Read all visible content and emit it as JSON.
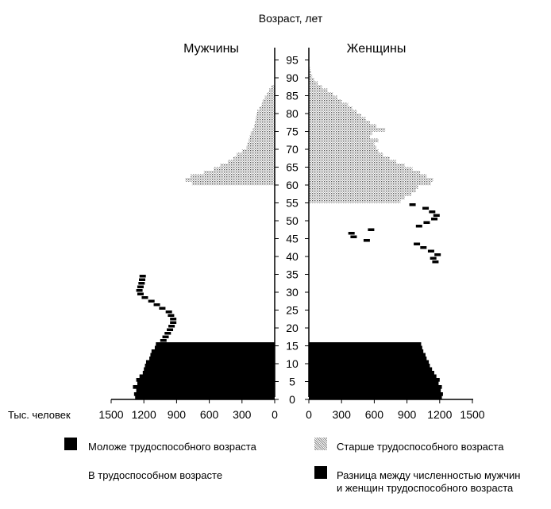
{
  "chart_data": {
    "type": "bar",
    "orientation": "horizontal-population-pyramid",
    "title": "",
    "age_axis_label": "Возраст, лет",
    "value_axis_label": "Тыс. человек",
    "left_panel_label": "Мужчины",
    "right_panel_label": "Женщины",
    "age_ticks": [
      0,
      5,
      10,
      15,
      20,
      25,
      30,
      35,
      40,
      45,
      50,
      55,
      60,
      65,
      70,
      75,
      80,
      85,
      90,
      95
    ],
    "value_ticks_left": [
      1500,
      1200,
      900,
      600,
      300,
      0
    ],
    "value_ticks_right": [
      0,
      300,
      600,
      900,
      1200,
      1500
    ],
    "xlim": [
      0,
      1500
    ],
    "ylim": [
      0,
      100
    ],
    "legend": {
      "young": "Моложе трудоспособного возраста",
      "working": "В трудоспособном возрасте",
      "old": "Старше трудоспособного возраста",
      "diff_line1": "Разница между численностью мужчин",
      "diff_line2": "и женщин трудоспособного возраста"
    },
    "colors": {
      "young": "#000000",
      "old": "#aaaaaa",
      "diff": "#000000",
      "axis": "#000000"
    },
    "men": {
      "young": [
        {
          "age": 0,
          "v": 1280
        },
        {
          "age": 1,
          "v": 1290
        },
        {
          "age": 2,
          "v": 1270
        },
        {
          "age": 3,
          "v": 1300
        },
        {
          "age": 4,
          "v": 1260
        },
        {
          "age": 5,
          "v": 1270
        },
        {
          "age": 6,
          "v": 1240
        },
        {
          "age": 7,
          "v": 1210
        },
        {
          "age": 8,
          "v": 1200
        },
        {
          "age": 9,
          "v": 1190
        },
        {
          "age": 10,
          "v": 1180
        },
        {
          "age": 11,
          "v": 1150
        },
        {
          "age": 12,
          "v": 1140
        },
        {
          "age": 13,
          "v": 1130
        },
        {
          "age": 14,
          "v": 1100
        },
        {
          "age": 15,
          "v": 1090
        }
      ],
      "old": [
        {
          "age": 60,
          "v": 760
        },
        {
          "age": 61,
          "v": 820
        },
        {
          "age": 62,
          "v": 770
        },
        {
          "age": 63,
          "v": 650
        },
        {
          "age": 64,
          "v": 560
        },
        {
          "age": 65,
          "v": 500
        },
        {
          "age": 66,
          "v": 430
        },
        {
          "age": 67,
          "v": 380
        },
        {
          "age": 68,
          "v": 350
        },
        {
          "age": 69,
          "v": 300
        },
        {
          "age": 70,
          "v": 260
        },
        {
          "age": 71,
          "v": 250
        },
        {
          "age": 72,
          "v": 240
        },
        {
          "age": 73,
          "v": 230
        },
        {
          "age": 74,
          "v": 220
        },
        {
          "age": 75,
          "v": 200
        },
        {
          "age": 76,
          "v": 190
        },
        {
          "age": 77,
          "v": 180
        },
        {
          "age": 78,
          "v": 175
        },
        {
          "age": 79,
          "v": 170
        },
        {
          "age": 80,
          "v": 160
        },
        {
          "age": 81,
          "v": 140
        },
        {
          "age": 82,
          "v": 120
        },
        {
          "age": 83,
          "v": 110
        },
        {
          "age": 84,
          "v": 90
        },
        {
          "age": 85,
          "v": 70
        },
        {
          "age": 86,
          "v": 50
        },
        {
          "age": 87,
          "v": 30
        }
      ],
      "diff": [
        {
          "age": 16,
          "v": 1050
        },
        {
          "age": 17,
          "v": 1030
        },
        {
          "age": 18,
          "v": 1010
        },
        {
          "age": 19,
          "v": 990
        },
        {
          "age": 20,
          "v": 975
        },
        {
          "age": 21,
          "v": 960
        },
        {
          "age": 22,
          "v": 960
        },
        {
          "age": 23,
          "v": 980
        },
        {
          "age": 24,
          "v": 1000
        },
        {
          "age": 25,
          "v": 1060
        },
        {
          "age": 26,
          "v": 1110
        },
        {
          "age": 27,
          "v": 1160
        },
        {
          "age": 28,
          "v": 1220
        },
        {
          "age": 29,
          "v": 1260
        },
        {
          "age": 30,
          "v": 1270
        },
        {
          "age": 31,
          "v": 1260
        },
        {
          "age": 32,
          "v": 1250
        },
        {
          "age": 33,
          "v": 1245
        },
        {
          "age": 34,
          "v": 1240
        }
      ]
    },
    "women": {
      "young": [
        {
          "age": 0,
          "v": 1220
        },
        {
          "age": 1,
          "v": 1230
        },
        {
          "age": 2,
          "v": 1210
        },
        {
          "age": 3,
          "v": 1220
        },
        {
          "age": 4,
          "v": 1190
        },
        {
          "age": 5,
          "v": 1200
        },
        {
          "age": 6,
          "v": 1170
        },
        {
          "age": 7,
          "v": 1150
        },
        {
          "age": 8,
          "v": 1130
        },
        {
          "age": 9,
          "v": 1110
        },
        {
          "age": 10,
          "v": 1100
        },
        {
          "age": 11,
          "v": 1080
        },
        {
          "age": 12,
          "v": 1070
        },
        {
          "age": 13,
          "v": 1050
        },
        {
          "age": 14,
          "v": 1040
        },
        {
          "age": 15,
          "v": 1030
        }
      ],
      "old": [
        {
          "age": 55,
          "v": 840
        },
        {
          "age": 56,
          "v": 880
        },
        {
          "age": 57,
          "v": 940
        },
        {
          "age": 58,
          "v": 980
        },
        {
          "age": 59,
          "v": 1000
        },
        {
          "age": 60,
          "v": 1120
        },
        {
          "age": 61,
          "v": 1140
        },
        {
          "age": 62,
          "v": 1080
        },
        {
          "age": 63,
          "v": 1020
        },
        {
          "age": 64,
          "v": 950
        },
        {
          "age": 65,
          "v": 880
        },
        {
          "age": 66,
          "v": 800
        },
        {
          "age": 67,
          "v": 740
        },
        {
          "age": 68,
          "v": 680
        },
        {
          "age": 69,
          "v": 640
        },
        {
          "age": 70,
          "v": 620
        },
        {
          "age": 71,
          "v": 600
        },
        {
          "age": 72,
          "v": 640
        },
        {
          "age": 73,
          "v": 560
        },
        {
          "age": 74,
          "v": 580
        },
        {
          "age": 75,
          "v": 700
        },
        {
          "age": 76,
          "v": 620
        },
        {
          "age": 77,
          "v": 560
        },
        {
          "age": 78,
          "v": 520
        },
        {
          "age": 79,
          "v": 480
        },
        {
          "age": 80,
          "v": 440
        },
        {
          "age": 81,
          "v": 400
        },
        {
          "age": 82,
          "v": 360
        },
        {
          "age": 83,
          "v": 300
        },
        {
          "age": 84,
          "v": 260
        },
        {
          "age": 85,
          "v": 220
        },
        {
          "age": 86,
          "v": 170
        },
        {
          "age": 87,
          "v": 120
        },
        {
          "age": 88,
          "v": 80
        },
        {
          "age": 89,
          "v": 50
        },
        {
          "age": 90,
          "v": 30
        },
        {
          "age": 91,
          "v": 18
        },
        {
          "age": 92,
          "v": 10
        }
      ],
      "diff": [
        {
          "age": 38,
          "v": 1190
        },
        {
          "age": 39,
          "v": 1170
        },
        {
          "age": 40,
          "v": 1210
        },
        {
          "age": 41,
          "v": 1150
        },
        {
          "age": 42,
          "v": 1080
        },
        {
          "age": 43,
          "v": 1020
        },
        {
          "age": 44,
          "v": 560
        },
        {
          "age": 45,
          "v": 440
        },
        {
          "age": 46,
          "v": 420
        },
        {
          "age": 47,
          "v": 600
        },
        {
          "age": 48,
          "v": 1040
        },
        {
          "age": 49,
          "v": 1110
        },
        {
          "age": 50,
          "v": 1180
        },
        {
          "age": 51,
          "v": 1200
        },
        {
          "age": 52,
          "v": 1160
        },
        {
          "age": 53,
          "v": 1100
        },
        {
          "age": 54,
          "v": 980
        }
      ]
    }
  }
}
